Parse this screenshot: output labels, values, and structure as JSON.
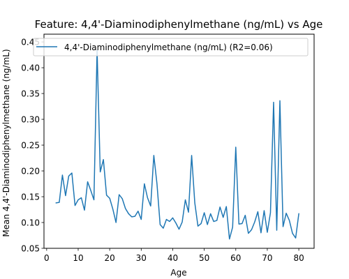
{
  "chart_data": {
    "type": "line",
    "title": "Feature: 4,4'-Diaminodiphenylmethane (ng/mL) vs Age",
    "xlabel": "Age",
    "ylabel": "Mean 4,4'-Diaminodiphenylmethane (ng/mL)",
    "xlim": [
      -0.85,
      84.85
    ],
    "ylim": [
      0.05,
      0.465
    ],
    "xticks": [
      0,
      10,
      20,
      30,
      40,
      50,
      60,
      70,
      80
    ],
    "yticks": [
      0.05,
      0.1,
      0.15,
      0.2,
      0.25,
      0.3,
      0.35,
      0.4,
      0.45
    ],
    "grid": false,
    "legend_position": "top-left",
    "series": [
      {
        "name": "4,4'-Diaminodiphenylmethane (ng/mL) (R2=0.06)",
        "color": "#1f77b4",
        "x": [
          3,
          4,
          5,
          6,
          7,
          8,
          9,
          10,
          11,
          12,
          13,
          14,
          15,
          16,
          17,
          18,
          19,
          20,
          21,
          22,
          23,
          24,
          25,
          26,
          27,
          28,
          29,
          30,
          31,
          32,
          33,
          34,
          35,
          36,
          37,
          38,
          39,
          40,
          41,
          42,
          43,
          44,
          45,
          46,
          47,
          48,
          49,
          50,
          51,
          52,
          53,
          54,
          55,
          56,
          57,
          58,
          59,
          60,
          61,
          62,
          63,
          64,
          65,
          66,
          67,
          68,
          69,
          70,
          71,
          72,
          73,
          74,
          75,
          76,
          77,
          78,
          79,
          80
        ],
        "y": [
          0.138,
          0.139,
          0.192,
          0.152,
          0.19,
          0.196,
          0.133,
          0.144,
          0.148,
          0.124,
          0.179,
          0.162,
          0.144,
          0.434,
          0.198,
          0.222,
          0.153,
          0.147,
          0.126,
          0.1,
          0.154,
          0.146,
          0.127,
          0.117,
          0.111,
          0.112,
          0.122,
          0.106,
          0.175,
          0.148,
          0.132,
          0.23,
          0.175,
          0.096,
          0.089,
          0.106,
          0.102,
          0.109,
          0.099,
          0.087,
          0.101,
          0.144,
          0.12,
          0.23,
          0.138,
          0.093,
          0.098,
          0.119,
          0.096,
          0.117,
          0.102,
          0.104,
          0.13,
          0.11,
          0.131,
          0.068,
          0.091,
          0.246,
          0.097,
          0.098,
          0.114,
          0.079,
          0.086,
          0.101,
          0.121,
          0.08,
          0.123,
          0.081,
          0.119,
          0.333,
          0.085,
          0.336,
          0.092,
          0.118,
          0.104,
          0.079,
          0.07,
          0.117
        ]
      }
    ]
  }
}
